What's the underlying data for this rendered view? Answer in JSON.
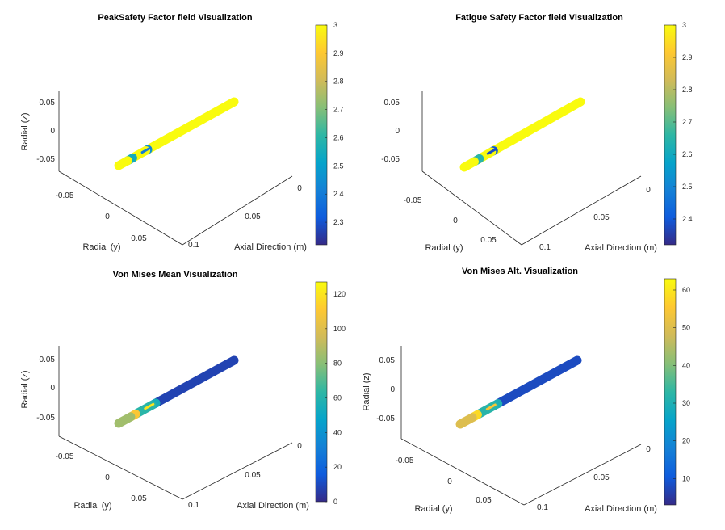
{
  "colors": {
    "parula": [
      "#352a87",
      "#0f5cdd",
      "#1481d6",
      "#06a4ca",
      "#2eb7a4",
      "#87bf77",
      "#d1bb59",
      "#fec832",
      "#f9fb0e"
    ],
    "axis": "#262626"
  },
  "chart_data": [
    {
      "type": "scatter",
      "id": "peak",
      "title": "PeakSafety Factor field Visualization",
      "xlabel": "Axial Direction (m)",
      "ylabel": "Radial (y)",
      "zlabel": "Radial (z)",
      "z_ticks": [
        "0.05",
        "0",
        "-0.05"
      ],
      "y_ticks": [
        "-0.05",
        "0",
        "0.05"
      ],
      "x_ticks": [
        "0",
        "0.05",
        "0.1"
      ],
      "colorbar": {
        "min": 2.22,
        "max": 3,
        "ticks": [
          "3",
          "2.9",
          "2.8",
          "2.7",
          "2.6",
          "2.5",
          "2.4",
          "2.3"
        ],
        "tick_values": [
          3,
          2.9,
          2.8,
          2.7,
          2.6,
          2.5,
          2.4,
          2.3
        ]
      },
      "segments": [
        {
          "x_start": 0.0,
          "x_end": 0.086,
          "value": 3.0
        },
        {
          "x_start": 0.086,
          "x_end": 0.088,
          "value": 2.45
        },
        {
          "x_start": 0.088,
          "x_end": 0.09,
          "value": 3.0
        },
        {
          "x_start": 0.09,
          "x_end": 0.096,
          "value": 3.0
        },
        {
          "x_start": 0.096,
          "x_end": 0.1,
          "value": 3.0
        },
        {
          "x_start": 0.101,
          "x_end": 0.106,
          "value": 2.55
        },
        {
          "x_start": 0.106,
          "x_end": 0.115,
          "value": 3.0
        }
      ],
      "thin_band": {
        "x_start": 0.086,
        "x_end": 0.094,
        "value": 2.4
      }
    },
    {
      "type": "scatter",
      "id": "fatigue",
      "title": "Fatigue Safety Factor field Visualization",
      "xlabel": "Axial Direction (m)",
      "ylabel": "Radial (y)",
      "zlabel": "",
      "z_ticks": [
        "0.05",
        "0",
        "-0.05"
      ],
      "y_ticks": [
        "-0.05",
        "0",
        "0.05"
      ],
      "x_ticks": [
        "0",
        "0.05",
        "0.1"
      ],
      "colorbar": {
        "min": 2.32,
        "max": 3,
        "ticks": [
          "3",
          "2.9",
          "2.8",
          "2.7",
          "2.6",
          "2.5",
          "2.4"
        ],
        "tick_values": [
          3,
          2.9,
          2.8,
          2.7,
          2.6,
          2.5,
          2.4
        ]
      },
      "segments": [
        {
          "x_start": 0.0,
          "x_end": 0.086,
          "value": 3.0
        },
        {
          "x_start": 0.086,
          "x_end": 0.088,
          "value": 2.4
        },
        {
          "x_start": 0.088,
          "x_end": 0.1,
          "value": 3.0
        },
        {
          "x_start": 0.1,
          "x_end": 0.105,
          "value": 2.65
        },
        {
          "x_start": 0.105,
          "x_end": 0.115,
          "value": 3.0
        }
      ],
      "thin_band": {
        "x_start": 0.086,
        "x_end": 0.094,
        "value": 2.38
      }
    },
    {
      "type": "scatter",
      "id": "vm-mean",
      "title": "Von Mises Mean Visualization",
      "xlabel": "Axial Direction (m)",
      "ylabel": "Radial (y)",
      "zlabel": "Radial (z)",
      "z_ticks": [
        "0.05",
        "0",
        "-0.05"
      ],
      "y_ticks": [
        "-0.05",
        "0",
        "0.05"
      ],
      "x_ticks": [
        "0",
        "0.05",
        "0.1"
      ],
      "colorbar": {
        "min": 0,
        "max": 127,
        "ticks": [
          "120",
          "100",
          "80",
          "60",
          "40",
          "20",
          "0"
        ],
        "tick_values": [
          120,
          100,
          80,
          60,
          40,
          20,
          0
        ]
      },
      "segments": [
        {
          "x_start": 0.0,
          "x_end": 0.078,
          "value": 8
        },
        {
          "x_start": 0.078,
          "x_end": 0.082,
          "value": 55
        },
        {
          "x_start": 0.082,
          "x_end": 0.098,
          "value": 62
        },
        {
          "x_start": 0.098,
          "x_end": 0.103,
          "value": 110
        },
        {
          "x_start": 0.103,
          "x_end": 0.115,
          "value": 85
        }
      ],
      "thin_band": {
        "x_start": 0.083,
        "x_end": 0.091,
        "value": 120
      }
    },
    {
      "type": "scatter",
      "id": "vm-alt",
      "title": "Von Mises Alt. Visualization",
      "xlabel": "Axial Direction (m)",
      "ylabel": "Radial (y)",
      "zlabel": "Radial (z)",
      "z_ticks": [
        "0.05",
        "0",
        "-0.05"
      ],
      "y_ticks": [
        "-0.05",
        "0",
        "0.05"
      ],
      "x_ticks": [
        "0",
        "0.05",
        "0.1"
      ],
      "colorbar": {
        "min": 3,
        "max": 63,
        "ticks": [
          "60",
          "50",
          "40",
          "30",
          "20",
          "10"
        ],
        "tick_values": [
          60,
          50,
          40,
          30,
          20,
          10
        ]
      },
      "segments": [
        {
          "x_start": 0.0,
          "x_end": 0.078,
          "value": 8
        },
        {
          "x_start": 0.078,
          "x_end": 0.082,
          "value": 30
        },
        {
          "x_start": 0.082,
          "x_end": 0.098,
          "value": 32
        },
        {
          "x_start": 0.098,
          "x_end": 0.103,
          "value": 58
        },
        {
          "x_start": 0.103,
          "x_end": 0.115,
          "value": 50
        }
      ],
      "thin_band": {
        "x_start": 0.083,
        "x_end": 0.091,
        "value": 55
      }
    }
  ]
}
